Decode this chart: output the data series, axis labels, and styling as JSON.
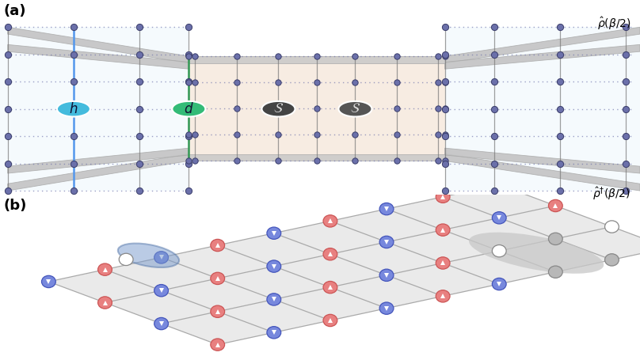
{
  "node_color": "#6B70AA",
  "node_edge_color": "#3a3d6a",
  "cyan_color": "#44BBDD",
  "green_color": "#33BB77",
  "peach_bg": "#f2e0d0",
  "light_blue_bg": "#d8ecf8",
  "gray_band_color": "#c8c8c8",
  "gray_band_edge": "#aaaaaa",
  "red_node_fill": "#E88080",
  "red_node_edge": "#cc5555",
  "blue_node_fill": "#7788DD",
  "blue_node_edge": "#4455bb",
  "gray_node_fill": "#b8b8b8",
  "gray_node_edge": "#888888",
  "white_node_fill": "#ffffff",
  "grid_line_color": "#aaaaaa",
  "vert_line_color": "#777777",
  "dot_row_color": "#6B70AA"
}
